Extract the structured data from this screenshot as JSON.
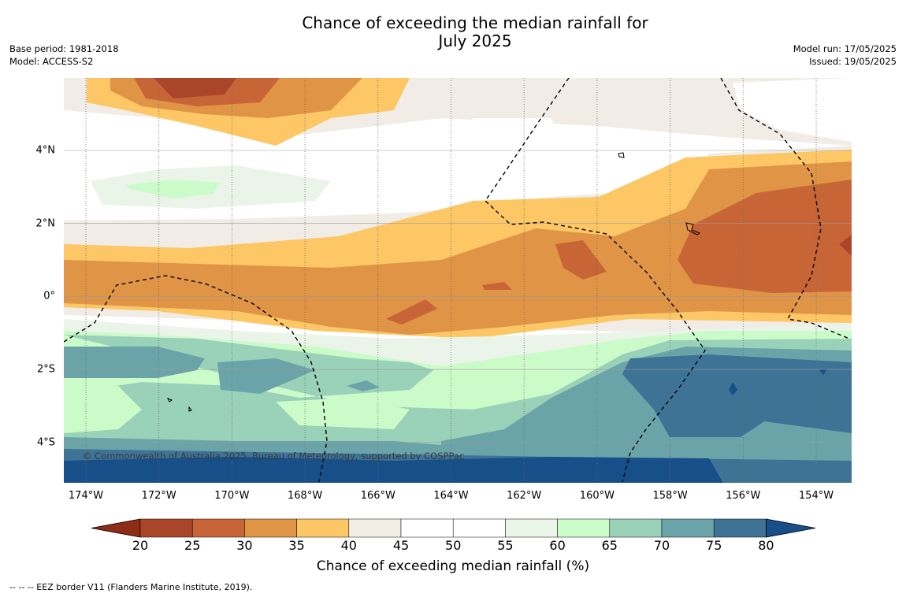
{
  "header": {
    "title_line1": "Chance of exceeding the median rainfall for",
    "title_line2": "July 2025",
    "base_period": "Base period: 1981-2018",
    "model": "Model: ACCESS-S2",
    "model_run": "Model run: 17/05/2025",
    "issued": "Issued: 19/05/2025"
  },
  "map": {
    "longitude_labels": [
      "174°W",
      "172°W",
      "170°W",
      "168°W",
      "166°W",
      "164°W",
      "162°W",
      "160°W",
      "158°W",
      "156°W",
      "154°W"
    ],
    "latitude_labels": [
      "4°N",
      "2°N",
      "0°",
      "2°S",
      "4°S"
    ],
    "copyright": "© Commonwealth of Australia 2025, Bureau of Meteorology, supported by COSPPac"
  },
  "colorbar": {
    "ticks": [
      "20",
      "25",
      "30",
      "35",
      "40",
      "45",
      "50",
      "55",
      "60",
      "65",
      "70",
      "75",
      "80"
    ],
    "colors": [
      "#8e2d14",
      "#a9462a",
      "#c86536",
      "#e09446",
      "#fcc764",
      "#f1ece6",
      "#ffffff",
      "#ffffff",
      "#eaf4e8",
      "#ccfbca",
      "#9ad1b9",
      "#6ba4a8",
      "#3e7396",
      "#174f89"
    ],
    "label": "Chance of exceeding median rainfall (%)"
  },
  "footnote": "-- -- -- EEZ border V11 (Flanders Marine Institute, 2019)."
}
